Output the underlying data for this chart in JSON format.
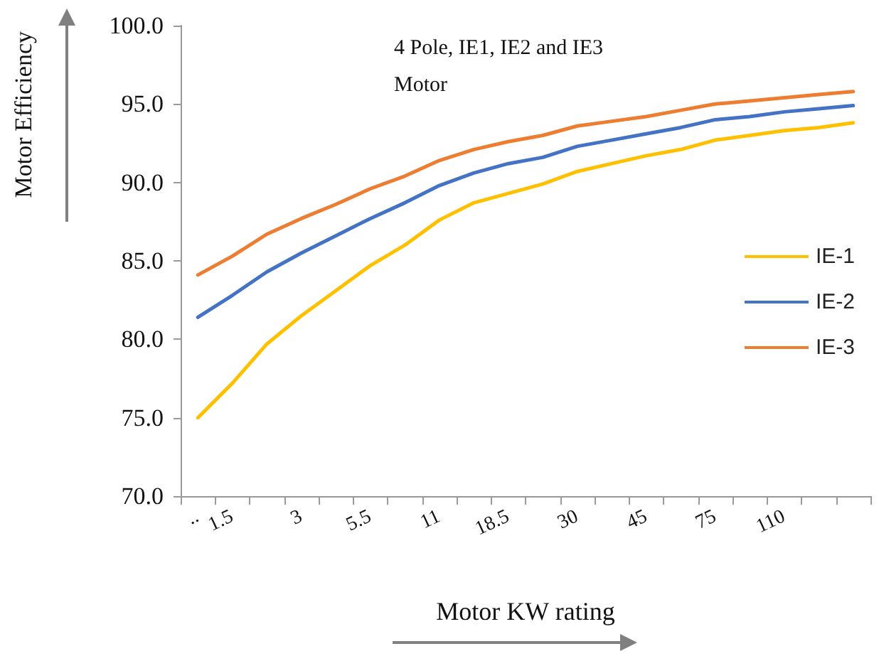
{
  "chart_data": {
    "type": "line",
    "title": "4 Pole, IE1, IE2 and IE3 Motor",
    "xlabel": "Motor KW rating",
    "ylabel": "Motor Efficiency",
    "categories": [
      "..",
      "1.5",
      null,
      "3",
      null,
      "5.5",
      null,
      "11",
      null,
      "18.5",
      null,
      "30",
      null,
      "45",
      null,
      "75",
      null,
      "110",
      null,
      null
    ],
    "series": [
      {
        "name": "IE-1",
        "color": "#ffc000",
        "values": [
          75.0,
          77.2,
          79.7,
          81.5,
          83.1,
          84.7,
          86.0,
          87.6,
          88.7,
          89.3,
          89.9,
          90.7,
          91.2,
          91.7,
          92.1,
          92.7,
          93.0,
          93.3,
          93.5,
          93.8
        ]
      },
      {
        "name": "IE-2",
        "color": "#4472c4",
        "values": [
          81.4,
          82.8,
          84.3,
          85.5,
          86.6,
          87.7,
          88.7,
          89.8,
          90.6,
          91.2,
          91.6,
          92.3,
          92.7,
          93.1,
          93.5,
          94.0,
          94.2,
          94.5,
          94.7,
          94.9
        ]
      },
      {
        "name": "IE-3",
        "color": "#ed7d31",
        "values": [
          84.1,
          85.3,
          86.7,
          87.7,
          88.6,
          89.6,
          90.4,
          91.4,
          92.1,
          92.6,
          93.0,
          93.6,
          93.9,
          94.2,
          94.6,
          95.0,
          95.2,
          95.4,
          95.6,
          95.8
        ]
      }
    ],
    "ylim": [
      70,
      100
    ],
    "yticks": [
      {
        "value": 70,
        "label": "70.0"
      },
      {
        "value": 75,
        "label": "75.0"
      },
      {
        "value": 80,
        "label": "80.0"
      },
      {
        "value": 85,
        "label": "85.0"
      },
      {
        "value": 90,
        "label": "90.0"
      },
      {
        "value": 95,
        "label": "95.0"
      },
      {
        "value": 100,
        "label": "100.0"
      }
    ],
    "grid": false,
    "legend": "right",
    "marker": "none",
    "line_style": "solid"
  }
}
